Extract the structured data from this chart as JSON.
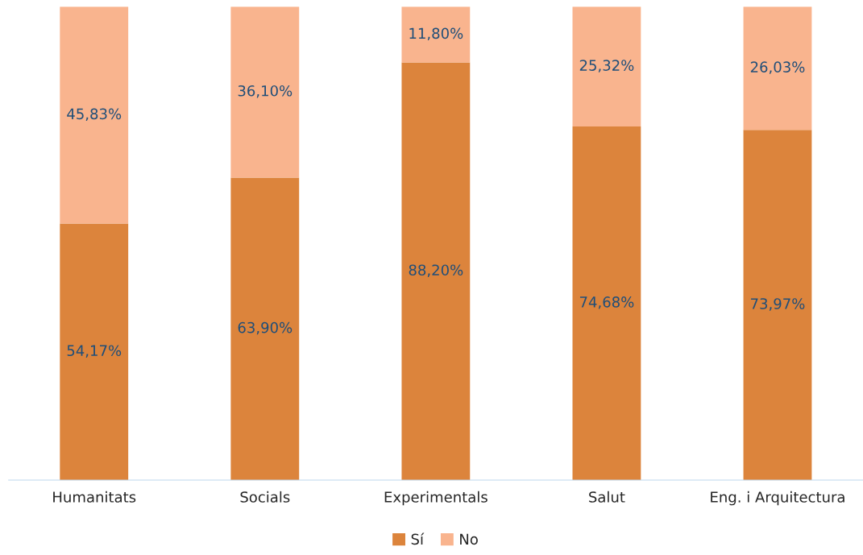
{
  "chart_data": {
    "type": "bar",
    "stacked": true,
    "categories": [
      "Humanitats",
      "Socials",
      "Experimentals",
      "Salut",
      "Eng. i Arquitectura"
    ],
    "series": [
      {
        "name": "Sí",
        "color": "#dc843c",
        "values": [
          54.17,
          63.9,
          88.2,
          74.68,
          73.97
        ],
        "value_labels": [
          "54,17%",
          "63,90%",
          "88,20%",
          "74,68%",
          "73,97%"
        ]
      },
      {
        "name": "No",
        "color": "#f9b48e",
        "values": [
          45.83,
          36.1,
          11.8,
          25.32,
          26.03
        ],
        "value_labels": [
          "45,83%",
          "36,10%",
          "11,80%",
          "25,32%",
          "26,03%"
        ]
      }
    ],
    "ylim": [
      0,
      100
    ],
    "tick_labels": "x",
    "legend": "bottom"
  }
}
